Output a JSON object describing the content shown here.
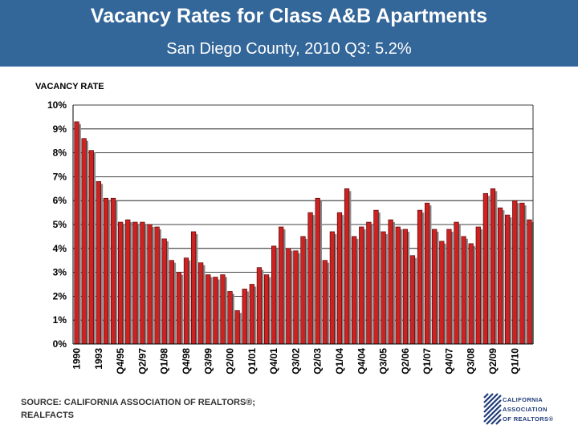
{
  "header": {
    "title": "Vacancy Rates for Class A&B Apartments",
    "subtitle": "San Diego County, 2010 Q3: 5.2%"
  },
  "colors": {
    "header_bg": "#336699",
    "bar": "#cc2222",
    "bar_stroke": "#440000",
    "shadow": "#8a8a8a"
  },
  "chart_data": {
    "type": "bar",
    "title": "",
    "ylabel": "VACANCY RATE",
    "xlabel": "",
    "ylim": [
      0,
      10
    ],
    "yticks": [
      "0%",
      "1%",
      "2%",
      "3%",
      "4%",
      "5%",
      "6%",
      "7%",
      "8%",
      "9%",
      "10%"
    ],
    "grid": true,
    "legend": "none",
    "xtick_labels": [
      "1990",
      "1993",
      "Q4/95",
      "Q2/97",
      "Q1/98",
      "Q4/98",
      "Q3/99",
      "Q2/00",
      "Q1/01",
      "Q4/01",
      "Q3/02",
      "Q2/03",
      "Q1/04",
      "Q4/04",
      "Q3/05",
      "Q2/06",
      "Q1/07",
      "Q4/07",
      "Q3/08",
      "Q2/09",
      "Q1/10"
    ],
    "xtick_label_bar_index": [
      0,
      3,
      6,
      9,
      12,
      15,
      18,
      21,
      24,
      27,
      30,
      33,
      36,
      39,
      42,
      45,
      48,
      51,
      54,
      57,
      60
    ],
    "values": [
      9.3,
      8.6,
      8.1,
      6.8,
      6.1,
      6.1,
      5.1,
      5.2,
      5.1,
      5.1,
      5.0,
      4.9,
      4.4,
      3.5,
      3.0,
      3.6,
      4.7,
      3.4,
      2.9,
      2.8,
      2.9,
      2.2,
      1.4,
      2.3,
      2.5,
      3.2,
      2.9,
      4.1,
      4.9,
      4.0,
      3.9,
      4.5,
      5.5,
      6.1,
      3.5,
      4.7,
      5.5,
      6.5,
      4.5,
      4.9,
      5.1,
      5.6,
      4.7,
      5.2,
      4.9,
      4.8,
      3.7,
      5.6,
      5.9,
      4.8,
      4.3,
      4.8,
      5.1,
      4.5,
      4.2,
      4.9,
      6.3,
      6.5,
      5.7,
      5.4,
      6.0,
      5.9,
      5.2
    ]
  },
  "footer": {
    "source_line1": "SOURCE: CALIFORNIA ASSOCIATION OF REALTORS®;",
    "source_line2": "REALFACTS"
  },
  "logo": {
    "line1": "CALIFORNIA",
    "line2": "ASSOCIATION",
    "line3": "OF REALTORS®"
  }
}
